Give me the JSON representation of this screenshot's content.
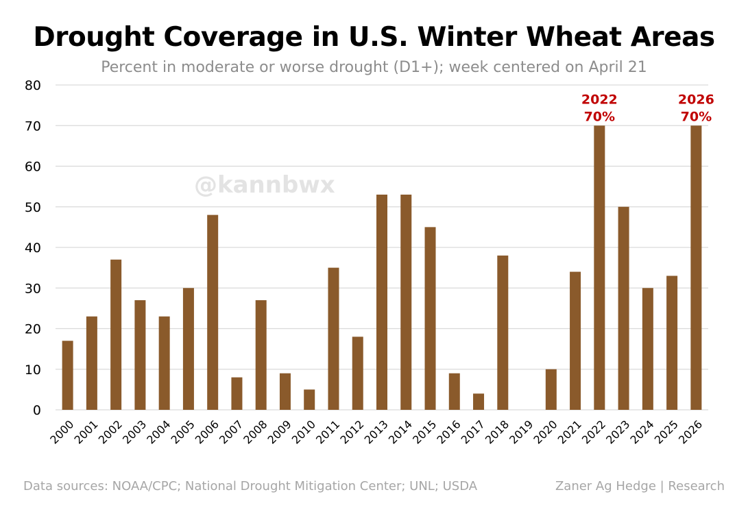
{
  "title": "Drought Coverage in U.S. Winter Wheat Areas",
  "subtitle": "Percent in moderate or worse drought (D1+); week centered on April 21",
  "watermark": "@kannbwx",
  "source": "Data sources: NOAA/CPC; National Drought Mitigation Center; UNL; USDA",
  "credit": "Zaner Ag Hedge | Research",
  "colors": {
    "bar": "#8a5a2b",
    "highlight": "#c00000",
    "grid": "#d9d9d9",
    "axis_text": "#000000"
  },
  "chart_data": {
    "type": "bar",
    "title": "Drought Coverage in U.S. Winter Wheat Areas",
    "subtitle": "Percent in moderate or worse drought (D1+); week centered on April 21",
    "xlabel": "",
    "ylabel": "",
    "ylim": [
      0,
      80
    ],
    "yticks": [
      0,
      10,
      20,
      30,
      40,
      50,
      60,
      70,
      80
    ],
    "grid": true,
    "categories": [
      "2000",
      "2001",
      "2002",
      "2003",
      "2004",
      "2005",
      "2006",
      "2007",
      "2008",
      "2009",
      "2010",
      "2011",
      "2012",
      "2013",
      "2014",
      "2015",
      "2016",
      "2017",
      "2018",
      "2019",
      "2020",
      "2021",
      "2022",
      "2023",
      "2024",
      "2025",
      "2026"
    ],
    "values": [
      17,
      23,
      37,
      27,
      23,
      30,
      48,
      8,
      27,
      9,
      5,
      35,
      18,
      53,
      53,
      45,
      9,
      4,
      38,
      0,
      10,
      34,
      70,
      50,
      30,
      33,
      70
    ],
    "annotations": [
      {
        "category": "2022",
        "year_label": "2022",
        "value_label": "70%"
      },
      {
        "category": "2026",
        "year_label": "2026",
        "value_label": "70%"
      }
    ]
  }
}
